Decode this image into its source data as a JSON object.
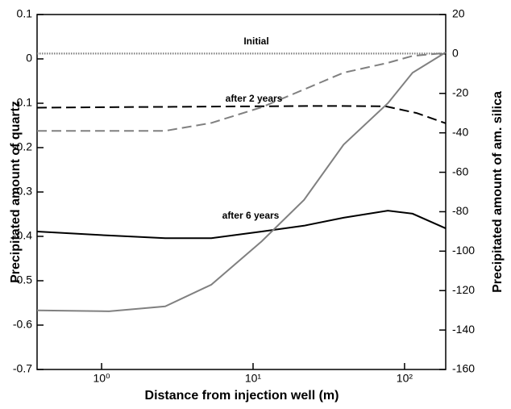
{
  "chart_data": {
    "type": "line",
    "x_label": "Distance from injection well (m)",
    "y_label": "Precipitated amount of quartz",
    "y2_label": "Precipitated amount of am. silica",
    "annotations": [
      "Initial",
      "after 2 years",
      "after 6 years"
    ],
    "x_log": true,
    "xlim": [
      0.375,
      187
    ],
    "xticks": [
      {
        "value": 1,
        "label": "10⁰"
      },
      {
        "value": 10,
        "label": "10¹"
      },
      {
        "value": 100,
        "label": "10²"
      }
    ],
    "ylim": [
      -0.7,
      0.1
    ],
    "yticks": [
      0.1,
      0,
      -0.1,
      -0.2,
      -0.3,
      -0.4,
      -0.5,
      -0.6,
      -0.7
    ],
    "y2lim": [
      -160,
      20
    ],
    "y2ticks": [
      20,
      0,
      -20,
      -40,
      -60,
      -80,
      -100,
      -120,
      -140,
      -160
    ],
    "series": [
      {
        "color": "#000000",
        "style": "solid",
        "x": [
          0.375,
          1.12,
          2.63,
          5.3,
          11.4,
          21.7,
          39.6,
          77.6,
          113,
          187
        ],
        "values": [
          -0.389,
          -0.398,
          -0.404,
          -0.404,
          -0.389,
          -0.376,
          -0.358,
          -0.342,
          -0.349,
          -0.382
        ]
      },
      {
        "color": "#000000",
        "style": "dashed",
        "x": [
          0.375,
          1,
          3,
          10,
          30,
          75,
          120,
          187
        ],
        "values": [
          -0.11,
          -0.109,
          -0.108,
          -0.107,
          -0.106,
          -0.107,
          -0.122,
          -0.145
        ]
      },
      {
        "color": "#808080",
        "style": "solid",
        "axis": "y2",
        "x": [
          0.375,
          1.12,
          2.63,
          5.3,
          11.4,
          21.7,
          39.6,
          77.6,
          113,
          187
        ],
        "values": [
          -130,
          -130.5,
          -128,
          -117,
          -95,
          -74,
          -46,
          -25,
          -9.5,
          0.8
        ]
      },
      {
        "color": "#808080",
        "style": "dashed",
        "axis": "y2",
        "x": [
          0.375,
          2.63,
          5.3,
          11.4,
          21.7,
          39.6,
          77.6,
          113,
          187
        ],
        "values": [
          -39,
          -39,
          -35,
          -27,
          -18,
          -9.5,
          -4.5,
          -1,
          0.5
        ]
      },
      {
        "color": "#808080",
        "style": "dotted",
        "x": [
          0.375,
          187
        ],
        "values": [
          0.013,
          0.013
        ]
      },
      {
        "color": "#808080",
        "style": "dotted",
        "axis": "y2",
        "x": [
          0.375,
          187
        ],
        "values": [
          0,
          0
        ]
      }
    ]
  }
}
